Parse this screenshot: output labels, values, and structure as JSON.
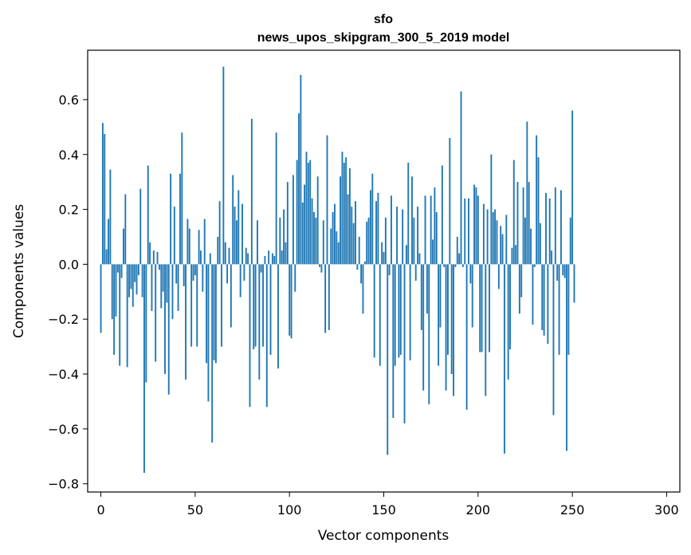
{
  "chart_data": {
    "type": "bar",
    "title_lines": [
      "sfo",
      "news_upos_skipgram_300_5_2019 model"
    ],
    "xlabel": "Vector components",
    "ylabel": "Components values",
    "xlim": [
      -7,
      307
    ],
    "ylim": [
      -0.83,
      0.78
    ],
    "xticks": [
      0,
      50,
      100,
      150,
      200,
      250,
      300
    ],
    "xtick_labels": [
      "0",
      "50",
      "100",
      "150",
      "200",
      "250",
      "300"
    ],
    "yticks": [
      -0.8,
      -0.6,
      -0.4,
      -0.2,
      0.0,
      0.2,
      0.4,
      0.6
    ],
    "ytick_labels": [
      "−0.8",
      "−0.6",
      "−0.4",
      "−0.2",
      "0.0",
      "0.2",
      "0.4",
      "0.6"
    ],
    "grid": false,
    "bar_color": "#1f77b4",
    "series": [
      {
        "values": [
          -0.25,
          0.515,
          0.475,
          0.055,
          0.165,
          0.345,
          -0.2,
          -0.33,
          -0.19,
          -0.03,
          -0.37,
          -0.05,
          0.13,
          0.255,
          -0.375,
          -0.12,
          -0.09,
          -0.155,
          -0.065,
          -0.11,
          -0.04,
          0.275,
          -0.12,
          -0.76,
          -0.43,
          0.36,
          0.08,
          -0.17,
          0.05,
          -0.355,
          0.045,
          -0.02,
          -0.16,
          -0.1,
          -0.4,
          -0.14,
          -0.475,
          0.33,
          -0.2,
          0.21,
          -0.07,
          -0.17,
          0.33,
          0.48,
          -0.08,
          -0.42,
          0.165,
          0.13,
          -0.3,
          -0.06,
          -0.04,
          -0.3,
          0.125,
          0.05,
          -0.1,
          0.165,
          -0.36,
          -0.5,
          0.04,
          -0.65,
          -0.35,
          -0.36,
          0.1,
          0.23,
          -0.3,
          0.72,
          0.08,
          -0.07,
          0.06,
          -0.23,
          0.325,
          0.21,
          0.16,
          0.27,
          -0.12,
          0.22,
          -0.06,
          0.06,
          0.04,
          -0.52,
          0.53,
          -0.31,
          -0.3,
          0.16,
          -0.42,
          -0.03,
          -0.3,
          0.03,
          -0.52,
          0.05,
          -0.33,
          0.04,
          0.03,
          0.48,
          -0.38,
          0.17,
          0.05,
          0.2,
          0.08,
          0.3,
          -0.26,
          -0.27,
          0.325,
          -0.1,
          0.38,
          0.55,
          0.69,
          0.225,
          0.29,
          0.41,
          0.37,
          0.38,
          0.24,
          0.19,
          0.17,
          0.32,
          -0.01,
          -0.03,
          0.16,
          -0.25,
          0.47,
          -0.24,
          0.13,
          0.19,
          0.22,
          0.12,
          0.08,
          0.32,
          0.41,
          0.37,
          0.39,
          0.255,
          0.35,
          0.21,
          0.15,
          0.23,
          -0.02,
          0.1,
          -0.07,
          -0.18,
          0.01,
          0.155,
          0.17,
          0.27,
          0.33,
          -0.34,
          0.23,
          0.26,
          -0.37,
          0.08,
          0.045,
          0.17,
          -0.695,
          -0.04,
          0.25,
          -0.56,
          -0.37,
          0.21,
          -0.34,
          -0.33,
          0.2,
          -0.58,
          0.07,
          0.37,
          -0.35,
          0.32,
          0.17,
          -0.06,
          0.21,
          0.04,
          -0.24,
          -0.46,
          0.25,
          -0.18,
          -0.51,
          0.25,
          0.09,
          0.28,
          0.19,
          -0.37,
          -0.23,
          0.36,
          -0.01,
          -0.46,
          -0.33,
          0.46,
          -0.4,
          -0.48,
          -0.01,
          0.1,
          0.04,
          0.63,
          -0.01,
          0.24,
          -0.53,
          0.24,
          -0.07,
          -0.23,
          0.29,
          0.28,
          0.25,
          -0.32,
          -0.32,
          0.22,
          -0.48,
          0.2,
          -0.32,
          0.4,
          0.19,
          0.2,
          0.16,
          -0.09,
          0.14,
          0.11,
          -0.69,
          0.18,
          -0.42,
          -0.31,
          0.06,
          0.38,
          0.07,
          0.3,
          -0.18,
          -0.12,
          0.28,
          0.17,
          0.52,
          0.3,
          0.13,
          -0.22,
          -0.01,
          0.47,
          0.39,
          0.15,
          -0.24,
          -0.26,
          0.26,
          -0.29,
          0.24,
          0.05,
          -0.55,
          0.28,
          -0.06,
          -0.33,
          0.27,
          -0.04,
          -0.05,
          -0.68,
          -0.33,
          0.17,
          0.56,
          -0.14
        ]
      }
    ]
  }
}
